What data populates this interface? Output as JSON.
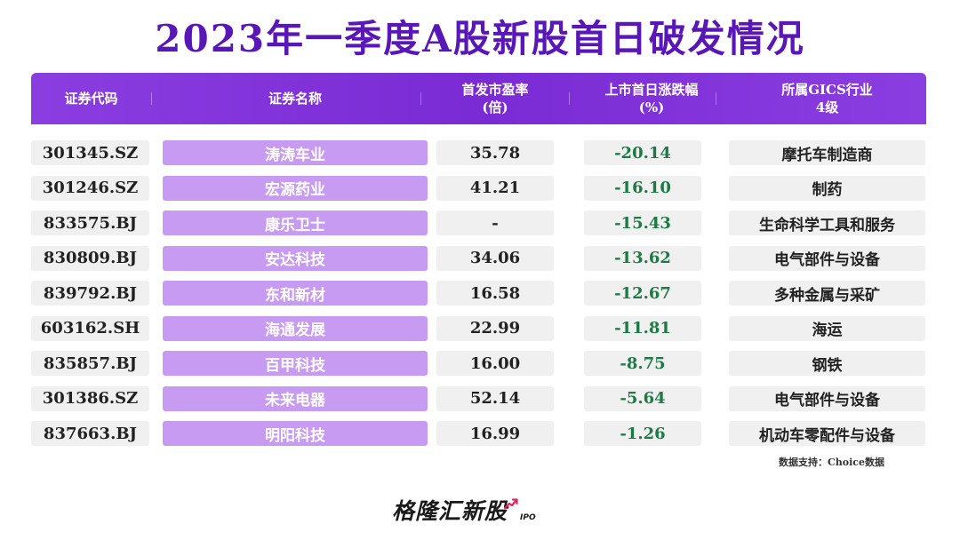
{
  "title": "2023年一季度A股新股首日破发情况",
  "chart_data": {
    "type": "table",
    "title": "2023年一季度A股新股首日破发情况",
    "columns": [
      "证券代码",
      "证券名称",
      "首发市盈率\n(倍)",
      "上市首日涨跌幅\n(%)",
      "所属GICS行业\n4级"
    ],
    "rows": [
      [
        "301345.SZ",
        "涛涛车业",
        "35.78",
        "-20.14",
        "摩托车制造商"
      ],
      [
        "301246.SZ",
        "宏源药业",
        "41.21",
        "-16.10",
        "制药"
      ],
      [
        "833575.BJ",
        "康乐卫士",
        "-",
        "-15.43",
        "生命科学工具和服务"
      ],
      [
        "830809.BJ",
        "安达科技",
        "34.06",
        "-13.62",
        "电气部件与设备"
      ],
      [
        "839792.BJ",
        "东和新材",
        "16.58",
        "-12.67",
        "多种金属与采矿"
      ],
      [
        "603162.SH",
        "海通发展",
        "22.99",
        "-11.81",
        "海运"
      ],
      [
        "835857.BJ",
        "百甲科技",
        "16.00",
        "-8.75",
        "钢铁"
      ],
      [
        "301386.SZ",
        "未来电器",
        "52.14",
        "-5.64",
        "电气部件与设备"
      ],
      [
        "837663.BJ",
        "明阳科技",
        "16.99",
        "-1.26",
        "机动车零配件与设备"
      ]
    ]
  },
  "source": "数据支持：Choice数据",
  "logo": {
    "text": "格隆汇新股",
    "suffix": "IPO"
  },
  "colors": {
    "title": "#5a17b8",
    "header": "#7a2bd4",
    "name_cell": "#c79bf2",
    "value_cell": "#f0f0f0",
    "negative_change": "#1e7a45",
    "logo_arrow": "#e0245e"
  }
}
